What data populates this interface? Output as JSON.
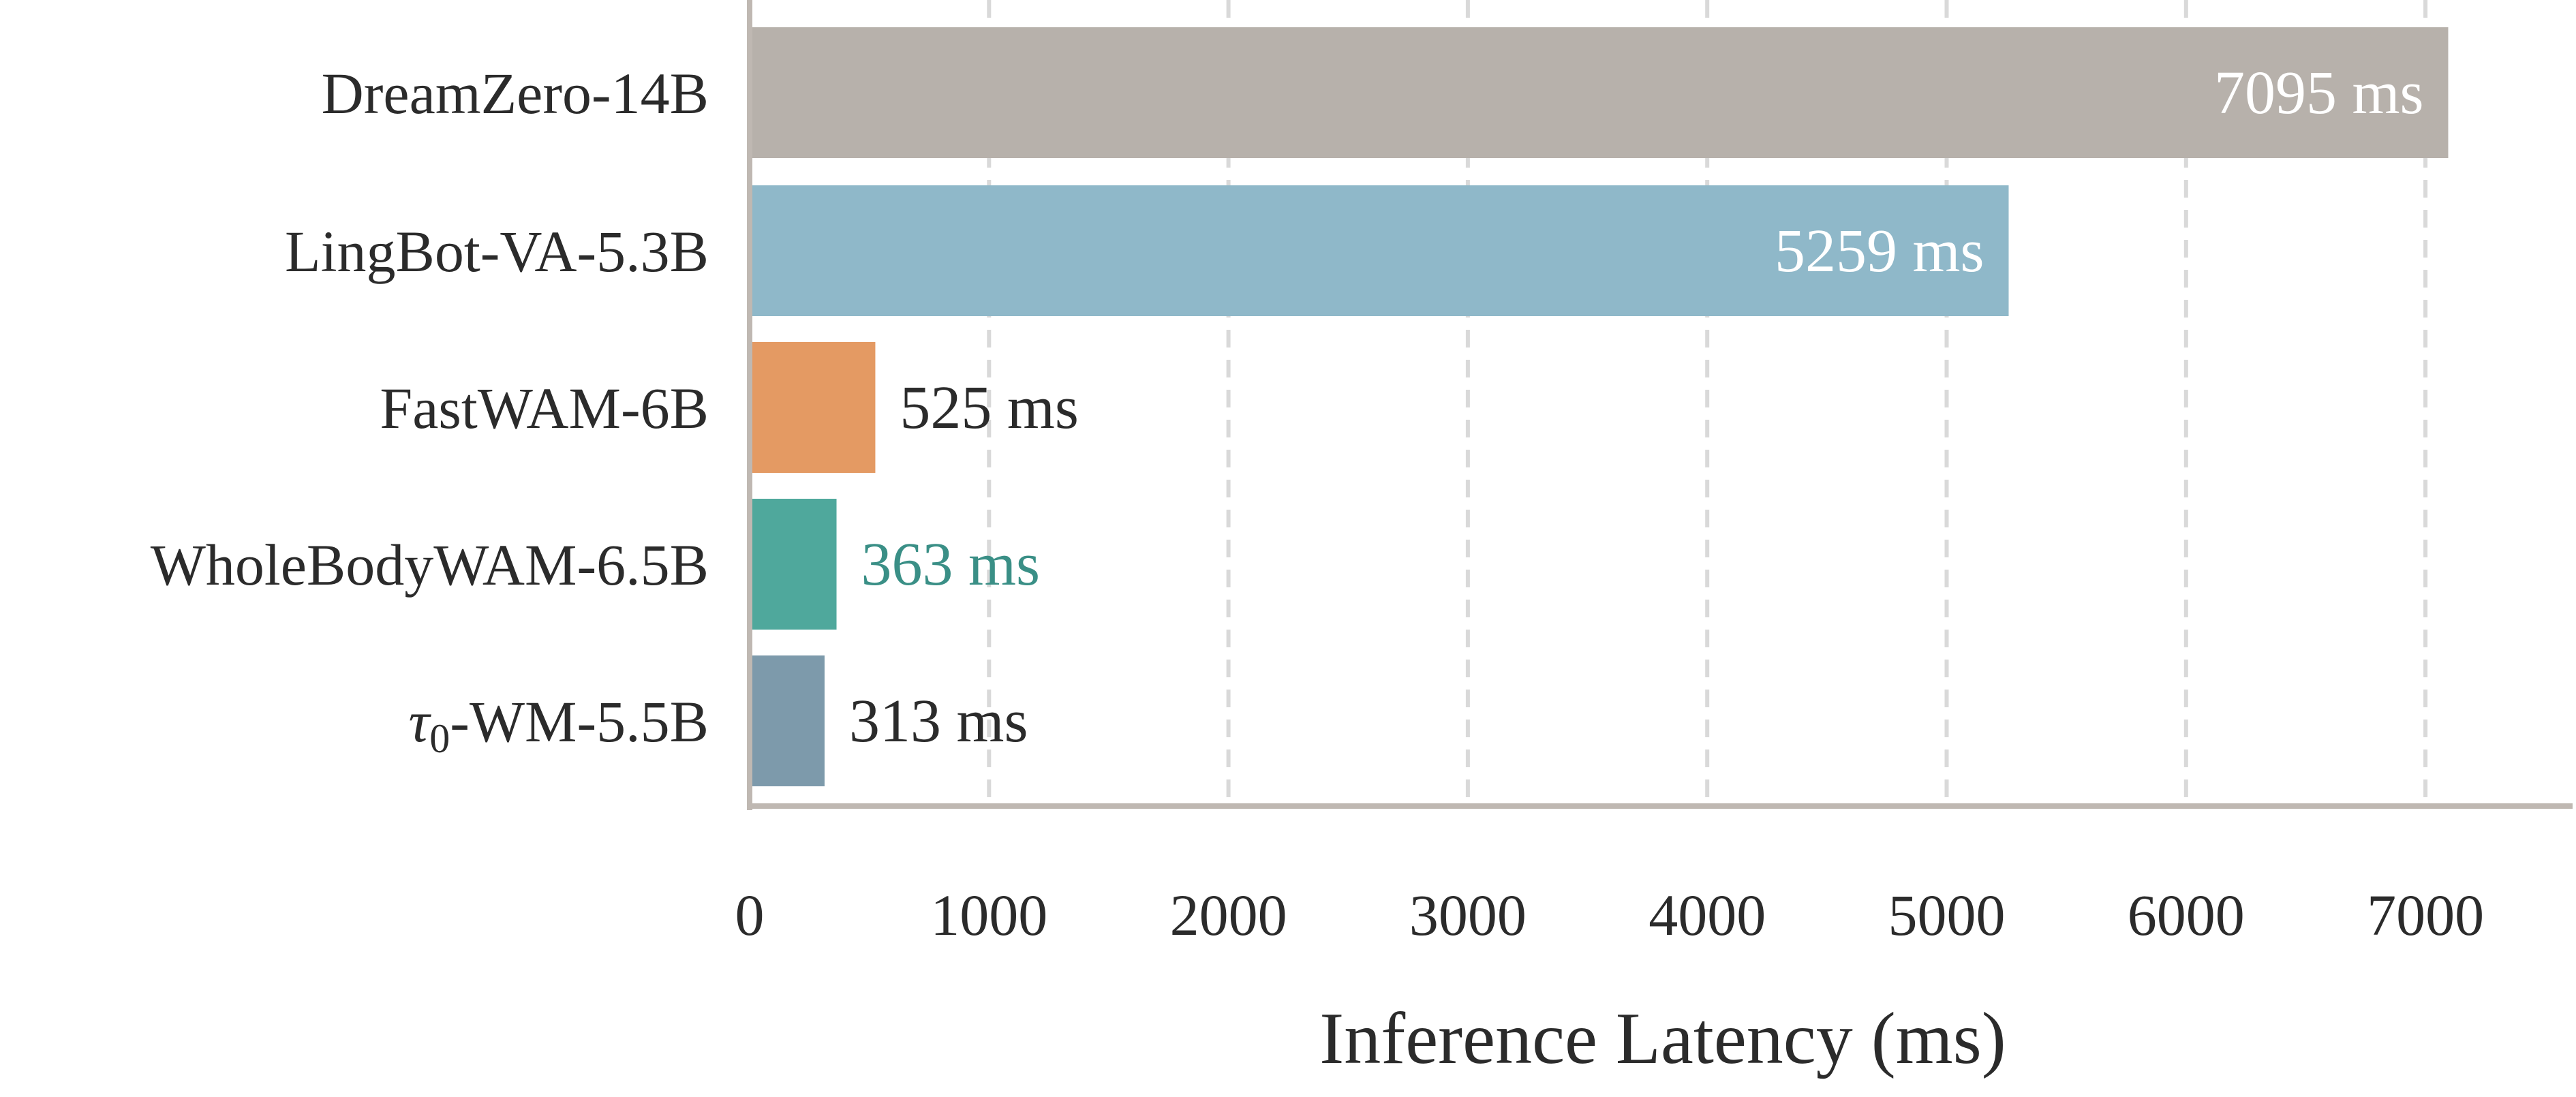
{
  "chart_data": {
    "type": "bar",
    "orientation": "horizontal",
    "categories": [
      "DreamZero-14B",
      "LingBot-VA-5.3B",
      "FastWAM-6B",
      "WholeBodyWAM-6.5B",
      "τ0-WM-5.5B"
    ],
    "category_parts": [
      {
        "main": "DreamZero-14B",
        "sub": "",
        "rest": ""
      },
      {
        "main": "LingBot-VA-5.3B",
        "sub": "",
        "rest": ""
      },
      {
        "main": "FastWAM-6B",
        "sub": "",
        "rest": ""
      },
      {
        "main": "WholeBodyWAM-6.5B",
        "sub": "",
        "rest": ""
      },
      {
        "main": "τ",
        "sub": "0",
        "rest": "-WM-5.5B"
      }
    ],
    "values": [
      7095,
      5259,
      525,
      363,
      313
    ],
    "value_labels": [
      "7095 ms",
      "5259 ms",
      "525 ms",
      "363 ms",
      "313 ms"
    ],
    "colors": [
      "#b7b1ab",
      "#8fb8c9",
      "#e49a63",
      "#4fa89c",
      "#7d9aab"
    ],
    "label_colors": [
      "#ffffff",
      "#ffffff",
      "#2b2b2b",
      "#3a8f86",
      "#2b2b2b"
    ],
    "label_inside": [
      true,
      true,
      false,
      false,
      false
    ],
    "xlabel": "Inference Latency (ms)",
    "xticks": [
      0,
      1000,
      2000,
      3000,
      4000,
      5000,
      6000,
      7000
    ],
    "xtick_labels": [
      "0",
      "1000",
      "2000",
      "3000",
      "4000",
      "5000",
      "6000",
      "7000"
    ],
    "xlim": [
      0,
      7600
    ],
    "grid": "vertical dashed",
    "axis_color": "#bfb8b2",
    "grid_color": "#d9d9d9"
  }
}
